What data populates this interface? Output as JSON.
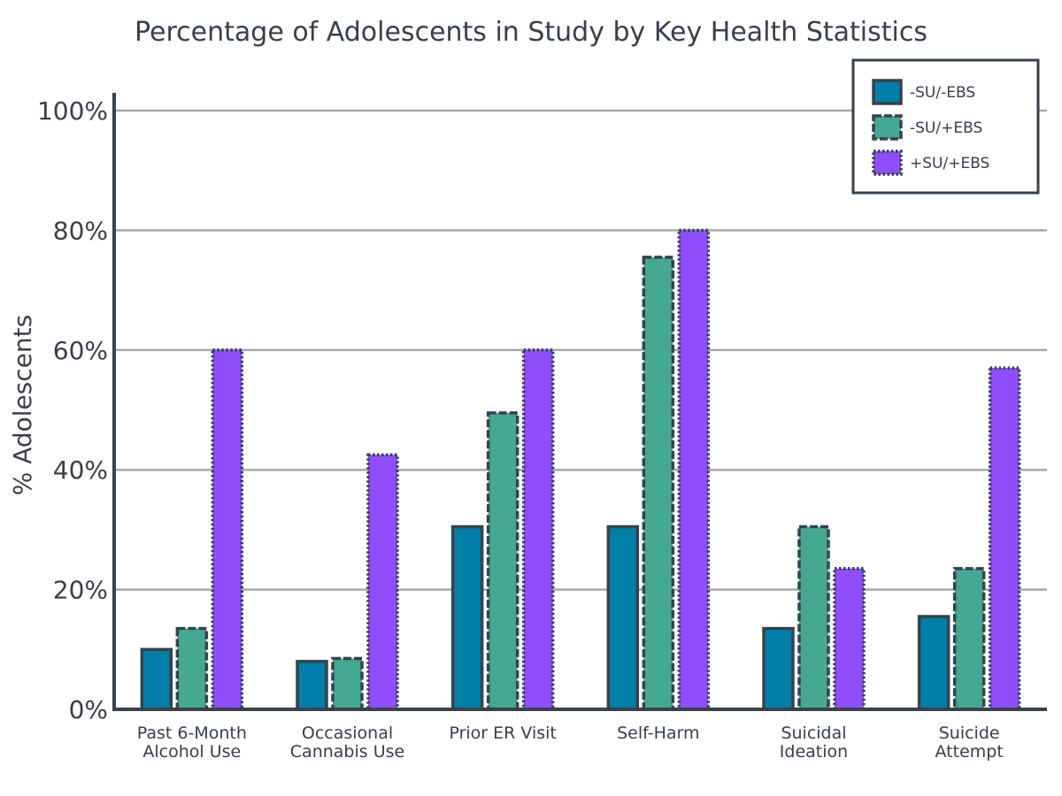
{
  "chart_data": {
    "type": "bar",
    "title": "Percentage of Adolescents in Study by Key Health Statistics",
    "xlabel": "",
    "ylabel": "% Adolescents",
    "ylim": [
      0,
      100
    ],
    "yticks": [
      "0%",
      "20%",
      "40%",
      "60%",
      "80%",
      "100%"
    ],
    "ytick_values": [
      0,
      20,
      40,
      60,
      80,
      100
    ],
    "grid": true,
    "legend_position": "top-right",
    "categories": [
      [
        "Past 6-Month",
        "Alcohol Use"
      ],
      [
        "Occasional",
        "Cannabis Use"
      ],
      [
        "Prior ER Visit"
      ],
      [
        "Self-Harm"
      ],
      [
        "Suicidal",
        "Ideation"
      ],
      [
        "Suicide",
        "Attempt"
      ]
    ],
    "series": [
      {
        "name": "-SU/-EBS",
        "color": "#007fa8",
        "border": "solid",
        "values": [
          10,
          8,
          30.5,
          30.5,
          13.5,
          15.5
        ]
      },
      {
        "name": "-SU/+EBS",
        "color": "#44a892",
        "border": "dashed",
        "values": [
          13.5,
          8.5,
          49.5,
          75.5,
          30.5,
          23.5
        ]
      },
      {
        "name": "+SU/+EBS",
        "color": "#8f4dfc",
        "border": "dotted",
        "values": [
          60,
          42.5,
          60,
          80,
          23.5,
          57
        ]
      }
    ]
  }
}
